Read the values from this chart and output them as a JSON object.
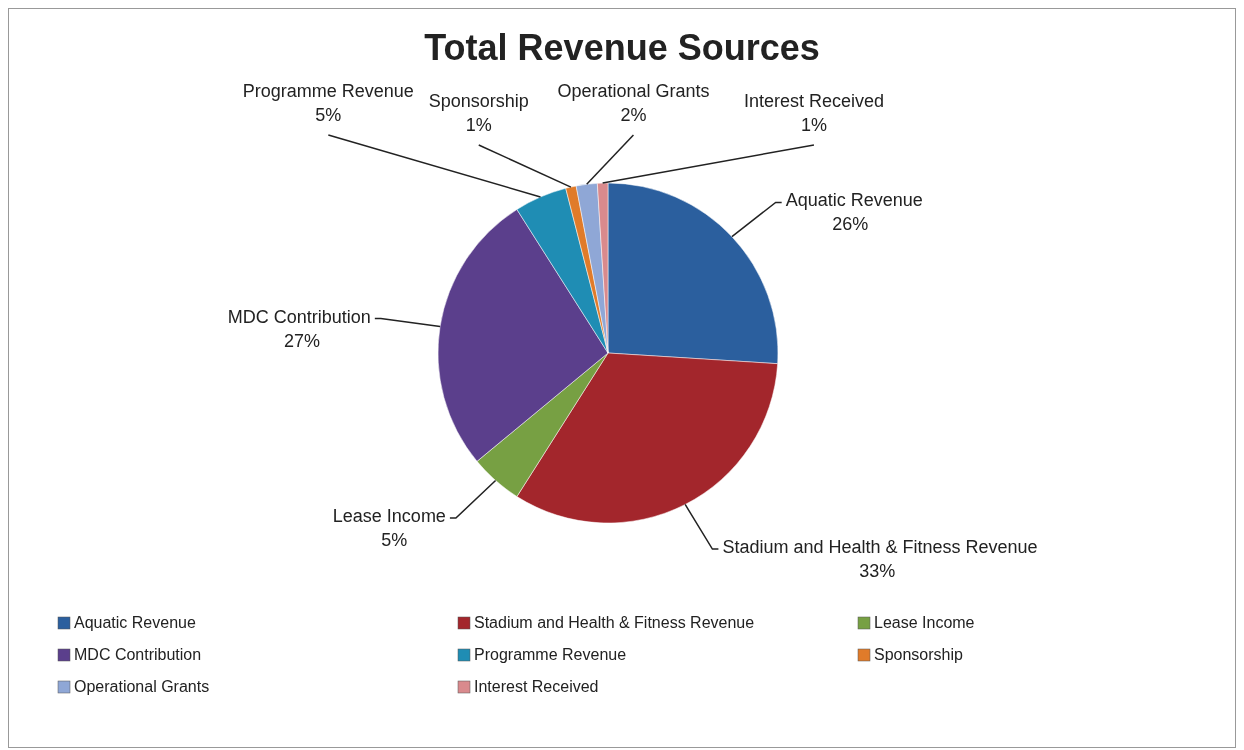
{
  "chart_data": {
    "type": "pie",
    "title": "Total Revenue Sources",
    "categories": [
      "Aquatic Revenue",
      "Stadium and Health & Fitness Revenue",
      "Lease Income",
      "MDC Contribution",
      "Programme Revenue",
      "Sponsorship",
      "Operational Grants",
      "Interest Received"
    ],
    "values": [
      26,
      33,
      5,
      27,
      5,
      1,
      2,
      1
    ],
    "colors": [
      "#2b5f9e",
      "#a3262c",
      "#77a043",
      "#5b3f8c",
      "#1f8db4",
      "#e07b2a",
      "#8fa7d6",
      "#d98a8d"
    ],
    "value_labels": [
      "26%",
      "33%",
      "5%",
      "27%",
      "5%",
      "1%",
      "2%",
      "1%"
    ],
    "legend": "bottom"
  }
}
